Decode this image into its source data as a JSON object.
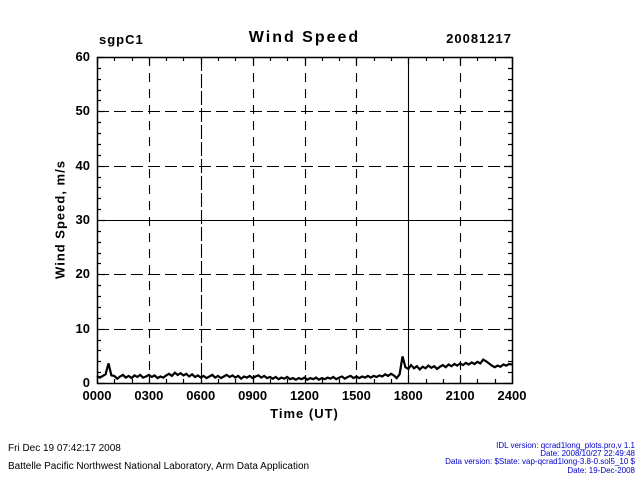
{
  "header": {
    "site_label": "sgpC1",
    "plot_title": "Wind Speed",
    "date_label": "20081217"
  },
  "chart_data": {
    "type": "line",
    "title": "Wind Speed",
    "site": "sgpC1",
    "date": "20081217",
    "xlabel": "Time (UT)",
    "ylabel": "Wind Speed, m/s",
    "xlim_hours": [
      0,
      24
    ],
    "ylim": [
      0,
      60
    ],
    "x_tick_labels": [
      "0000",
      "0300",
      "0600",
      "0900",
      "1200",
      "1500",
      "1800",
      "2100",
      "2400"
    ],
    "x_tick_hours": [
      0,
      3,
      6,
      9,
      12,
      15,
      18,
      21,
      24
    ],
    "y_tick_values": [
      0,
      10,
      20,
      30,
      40,
      50,
      60
    ],
    "x_minor_step_hours": 1,
    "y_minor_step": 2,
    "grid_style": "dashed",
    "solid_h_gridline_value": 30,
    "solid_v_gridline_hour": 18,
    "long_dash_v_gridline_hour": 6,
    "line_color": "#000000",
    "sample_step_minutes": 10,
    "wind_speed_mps": [
      1.3,
      1.0,
      1.3,
      1.6,
      3.6,
      1.4,
      1.3,
      0.8,
      1.2,
      1.5,
      1.0,
      1.3,
      0.9,
      1.4,
      1.1,
      1.5,
      1.0,
      1.2,
      1.5,
      1.1,
      1.4,
      0.9,
      1.2,
      1.0,
      1.4,
      1.7,
      1.3,
      1.9,
      1.5,
      1.8,
      1.4,
      1.7,
      1.2,
      1.6,
      1.1,
      1.4,
      1.0,
      1.3,
      0.9,
      1.2,
      1.5,
      1.0,
      1.3,
      0.9,
      1.2,
      1.5,
      1.1,
      1.4,
      1.0,
      1.3,
      0.8,
      1.2,
      1.0,
      1.3,
      0.9,
      1.2,
      1.4,
      1.0,
      1.3,
      0.9,
      1.1,
      0.8,
      1.1,
      0.7,
      1.0,
      0.8,
      1.1,
      0.7,
      0.9,
      0.6,
      0.9,
      0.7,
      1.0,
      0.6,
      0.9,
      0.7,
      1.0,
      0.6,
      0.9,
      0.7,
      1.0,
      0.8,
      1.1,
      0.7,
      1.0,
      1.2,
      0.8,
      1.1,
      1.3,
      0.9,
      1.2,
      0.9,
      1.2,
      1.0,
      1.3,
      1.0,
      1.3,
      1.1,
      1.4,
      1.2,
      1.6,
      1.3,
      1.7,
      1.4,
      0.9,
      1.6,
      4.9,
      2.9,
      2.6,
      3.3,
      2.7,
      3.1,
      2.5,
      3.0,
      2.7,
      3.2,
      2.8,
      3.1,
      2.6,
      3.0,
      3.3,
      2.9,
      3.4,
      3.1,
      3.5,
      3.2,
      3.6,
      3.3,
      3.7,
      3.4,
      3.8,
      3.5,
      3.9,
      3.6,
      4.3,
      4.0,
      3.6,
      3.2,
      2.9,
      3.2,
      3.0,
      3.4,
      3.2,
      3.5,
      3.4
    ]
  },
  "footer": {
    "left_line1": "Fri Dec 19 07:42:17 2008",
    "left_line2": "Battelle Pacific Northwest National Laboratory, Arm Data Application",
    "right_color": "#0000cc",
    "right_lines": [
      "IDL version: qcrad1long_plots.pro,v 1.1",
      "Date: 2008/10/27 22:49:48",
      "Data version: $State: vap-qcrad1long-3.8-0.sol5_10 $",
      "Date: 19-Dec-2008"
    ]
  }
}
